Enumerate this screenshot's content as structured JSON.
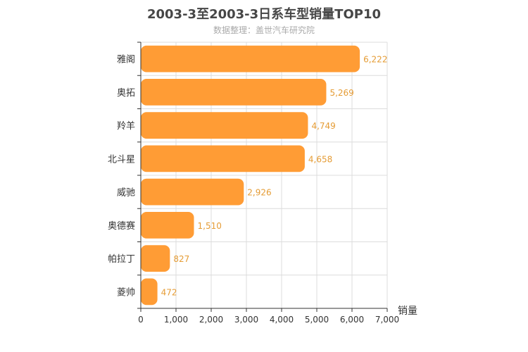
{
  "chart_data": {
    "type": "bar",
    "orientation": "horizontal",
    "title": "2003-3至2003-3日系车型销量TOP10",
    "subtitle": "数据整理：盖世汽车研究院",
    "xlabel": "销量",
    "ylabel": "",
    "categories": [
      "雅阁",
      "奥拓",
      "羚羊",
      "北斗星",
      "威驰",
      "奥德赛",
      "帕拉丁",
      "菱帅"
    ],
    "values": [
      6222,
      5269,
      4749,
      4658,
      2926,
      1510,
      827,
      472
    ],
    "value_labels": [
      "6,222",
      "5,269",
      "4,749",
      "4,658",
      "2,926",
      "1,510",
      "827",
      "472"
    ],
    "xlim": [
      0,
      7000
    ],
    "xticks": [
      0,
      1000,
      2000,
      3000,
      4000,
      5000,
      6000,
      7000
    ],
    "xtick_labels": [
      "0",
      "1,000",
      "2,000",
      "3,000",
      "4,000",
      "5,000",
      "6,000",
      "7,000"
    ],
    "grid": true,
    "bar_color": "#ff9c35",
    "label_color": "#e59c35"
  }
}
